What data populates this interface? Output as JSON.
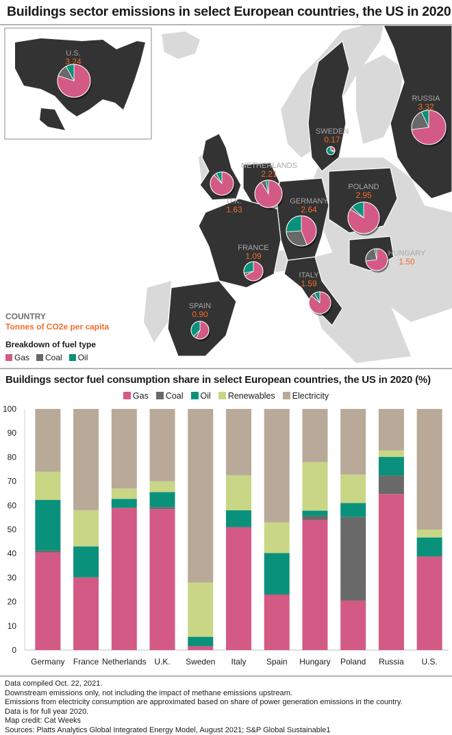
{
  "title": "Buildings sector emissions in select European countries, the US in 2020",
  "map": {
    "legend": {
      "country_label": "COUNTRY",
      "unit_label": "Tonnes of CO2e per capita",
      "breakdown_label": "Breakdown of fuel type",
      "items": [
        {
          "label": "Gas",
          "color": "#d35a85"
        },
        {
          "label": "Coal",
          "color": "#696969"
        },
        {
          "label": "Oil",
          "color": "#0a917b"
        }
      ]
    },
    "countries": [
      {
        "name": "U.S.",
        "value": "3.24",
        "pie": {
          "gas": 80,
          "coal": 12,
          "oil": 8
        }
      },
      {
        "name": "RUSSIA",
        "value": "3.32",
        "pie": {
          "gas": 73,
          "coal": 20,
          "oil": 7
        }
      },
      {
        "name": "SWEDEN",
        "value": "0.17",
        "pie": {
          "gas": 25,
          "coal": 5,
          "oil": 70
        }
      },
      {
        "name": "NETHERLANDS",
        "value": "2.21",
        "pie": {
          "gas": 91,
          "coal": 6,
          "oil": 3
        }
      },
      {
        "name": "U.K.",
        "value": "1.63",
        "pie": {
          "gas": 88,
          "coal": 4,
          "oil": 8
        }
      },
      {
        "name": "GERMANY",
        "value": "2.64",
        "pie": {
          "gas": 44,
          "coal": 30,
          "oil": 26
        }
      },
      {
        "name": "POLAND",
        "value": "2.95",
        "pie": {
          "gas": 84,
          "coal": 3,
          "oil": 13
        }
      },
      {
        "name": "FRANCE",
        "value": "1.09",
        "pie": {
          "gas": 67,
          "coal": 5,
          "oil": 28
        }
      },
      {
        "name": "HUNGARY",
        "value": "1.50",
        "pie": {
          "gas": 73,
          "coal": 24,
          "oil": 3
        }
      },
      {
        "name": "ITALY",
        "value": "1.59",
        "pie": {
          "gas": 86,
          "coal": 6,
          "oil": 8
        }
      },
      {
        "name": "SPAIN",
        "value": "0.90",
        "pie": {
          "gas": 57,
          "coal": 6,
          "oil": 37
        }
      }
    ]
  },
  "chart_data": {
    "type": "bar",
    "stacked": true,
    "title": "Buildings sector fuel consumption share in select European countries, the US in 2020 (%)",
    "xlabel": "",
    "ylabel": "",
    "ylim": [
      0,
      100
    ],
    "yticks": [
      "0",
      "10",
      "20",
      "30",
      "40",
      "50",
      "60",
      "70",
      "80",
      "90",
      "100"
    ],
    "legend_position": "top-center",
    "grid": false,
    "categories": [
      "Germany",
      "France",
      "Netherlands",
      "U.K.",
      "Sweden",
      "Italy",
      "Spain",
      "Hungary",
      "Poland",
      "Russia",
      "U.S."
    ],
    "series": [
      {
        "name": "Gas",
        "color": "#d35a85",
        "values": [
          40.5,
          30.0,
          59.0,
          58.5,
          1.5,
          51.0,
          22.8,
          54.0,
          20.5,
          64.7,
          38.8
        ]
      },
      {
        "name": "Coal",
        "color": "#696969",
        "values": [
          0.8,
          0.2,
          0.0,
          0.8,
          0.2,
          0.0,
          0.5,
          1.7,
          34.7,
          7.7,
          0.0
        ]
      },
      {
        "name": "Oil",
        "color": "#0a917b",
        "values": [
          21.0,
          12.8,
          3.7,
          6.2,
          3.8,
          7.0,
          16.9,
          2.1,
          5.8,
          7.7,
          7.9
        ]
      },
      {
        "name": "Renewables",
        "color": "#c8d685",
        "values": [
          11.7,
          15.0,
          4.3,
          4.5,
          22.5,
          14.5,
          12.8,
          20.2,
          11.8,
          2.7,
          3.3
        ]
      },
      {
        "name": "Electricity",
        "color": "#b8a999",
        "values": [
          26.0,
          42.0,
          33.0,
          30.0,
          72.0,
          27.5,
          47.0,
          22.0,
          27.2,
          17.2,
          50.0
        ]
      }
    ]
  },
  "notes": [
    "Data compiled Oct. 22, 2021.",
    "Downstream emissions only, not including the impact of methane emissions upstream.",
    "Emissions from electricity consumption are approximated based on share of power generation emissions in the country.",
    "Data is for full year 2020.",
    "Map credit: Cat Weeks",
    "Sources: Platts Analytics Global Integrated Energy Model, August 2021; S&P Global Sustainable1"
  ]
}
